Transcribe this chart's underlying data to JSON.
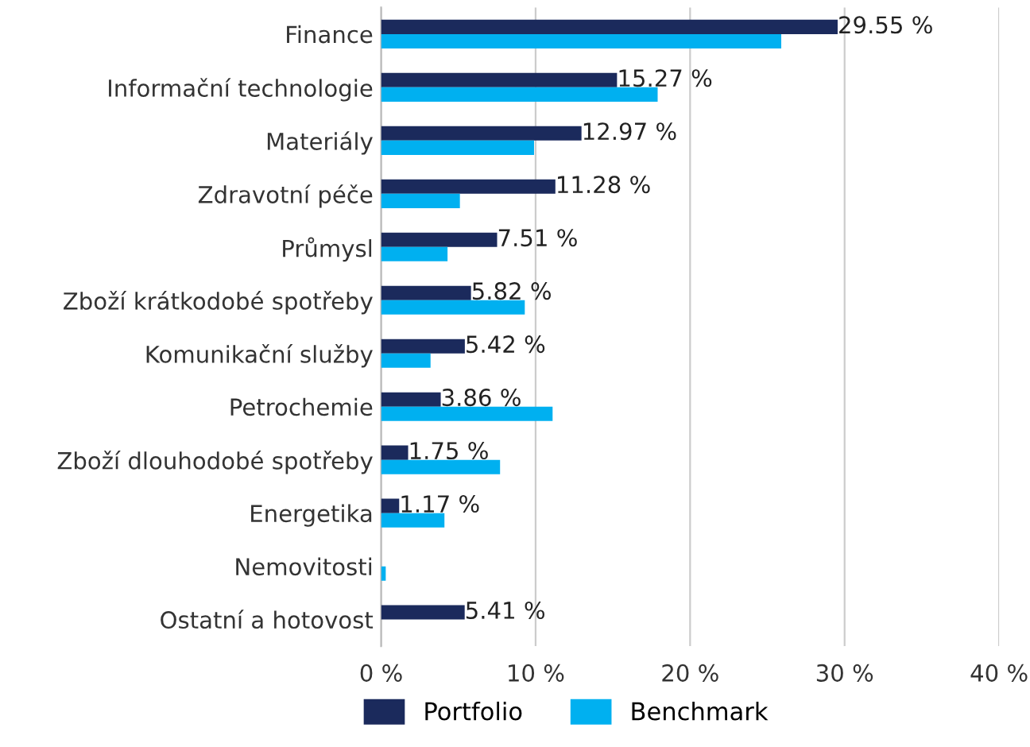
{
  "chart_data": {
    "type": "bar",
    "orientation": "horizontal",
    "categories": [
      "Finance",
      "Informační technologie",
      "Materiály",
      "Zdravotní péče",
      "Průmysl",
      "Zboží krátkodobé spotřeby",
      "Komunikační služby",
      "Petrochemie",
      "Zboží dlouhodobé spotřeby",
      "Energetika",
      "Nemovitosti",
      "Ostatní a hotovost"
    ],
    "series": [
      {
        "name": "Portfolio",
        "color": "#1b2a5c",
        "values": [
          29.55,
          15.27,
          12.97,
          11.28,
          7.51,
          5.82,
          5.42,
          3.86,
          1.75,
          1.17,
          null,
          5.41
        ],
        "value_labels": [
          "29.55 %",
          "15.27 %",
          "12.97 %",
          "11.28 %",
          "7.51 %",
          "5.82 %",
          "5.42 %",
          "3.86 %",
          "1.75 %",
          "1.17 %",
          null,
          "5.41 %"
        ]
      },
      {
        "name": "Benchmark",
        "color": "#00b0f0",
        "values": [
          25.9,
          17.9,
          9.9,
          5.1,
          4.3,
          9.3,
          3.2,
          11.1,
          7.7,
          4.1,
          0.3,
          null
        ]
      }
    ],
    "xlim": [
      0,
      40
    ],
    "xticks": [
      {
        "value": 0,
        "label": "0 %"
      },
      {
        "value": 10,
        "label": "10 %"
      },
      {
        "value": 20,
        "label": "20 %"
      },
      {
        "value": 30,
        "label": "30 %"
      },
      {
        "value": 40,
        "label": "40 %"
      }
    ],
    "grid": "x",
    "legend": "bottom"
  }
}
